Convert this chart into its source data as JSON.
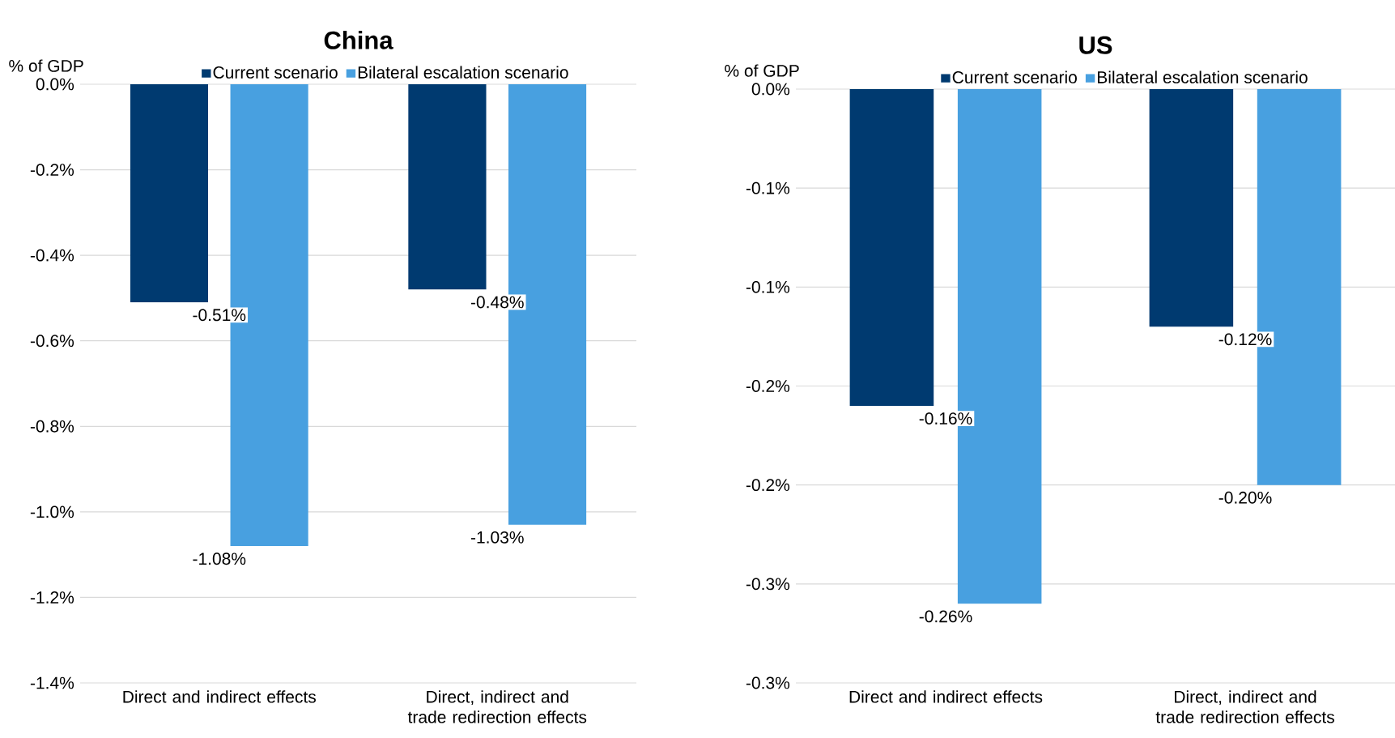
{
  "chart_data": [
    {
      "type": "bar",
      "title": "China",
      "ylabel": "% of GDP",
      "categories": [
        "Direct and indirect effects",
        "Direct, indirect and trade redirection effects"
      ],
      "series": [
        {
          "name": "Current scenario",
          "color": "#003a70",
          "values": [
            -0.51,
            -0.48
          ],
          "value_labels": [
            "-0.51%",
            "-0.48%"
          ]
        },
        {
          "name": "Bilateral escalation scenario",
          "color": "#48a0e0",
          "values": [
            -1.08,
            -1.03
          ],
          "value_labels": [
            "-1.08%",
            "-1.03%"
          ]
        }
      ],
      "ylim": [
        -1.4,
        0
      ],
      "yticks": [
        {
          "value": 0,
          "label": "0.0%"
        },
        {
          "value": -0.2,
          "label": "-0.2%"
        },
        {
          "value": -0.4,
          "label": "-0.4%"
        },
        {
          "value": -0.6,
          "label": "-0.6%"
        },
        {
          "value": -0.8,
          "label": "-0.8%"
        },
        {
          "value": -1.0,
          "label": "-1.0%"
        },
        {
          "value": -1.2,
          "label": "-1.2%"
        },
        {
          "value": -1.4,
          "label": "-1.4%"
        }
      ],
      "grid": "y",
      "legend": "top"
    },
    {
      "type": "bar",
      "title": "US",
      "ylabel": "% of GDP",
      "categories": [
        "Direct and indirect effects",
        "Direct, indirect and trade redirection effects"
      ],
      "series": [
        {
          "name": "Current scenario",
          "color": "#003a70",
          "values": [
            -0.16,
            -0.12
          ],
          "value_labels": [
            "-0.16%",
            "-0.12%"
          ]
        },
        {
          "name": "Bilateral escalation scenario",
          "color": "#48a0e0",
          "values": [
            -0.26,
            -0.2
          ],
          "value_labels": [
            "-0.26%",
            "-0.20%"
          ]
        }
      ],
      "ylim": [
        -0.3,
        0
      ],
      "yticks": [
        {
          "value": 0,
          "label": "0.0%"
        },
        {
          "value": -0.05,
          "label": "-0.1%"
        },
        {
          "value": -0.1,
          "label": "-0.1%"
        },
        {
          "value": -0.15,
          "label": "-0.2%"
        },
        {
          "value": -0.2,
          "label": "-0.2%"
        },
        {
          "value": -0.25,
          "label": "-0.3%"
        },
        {
          "value": -0.3,
          "label": "-0.3%"
        }
      ],
      "grid": "y",
      "legend": "top"
    }
  ]
}
